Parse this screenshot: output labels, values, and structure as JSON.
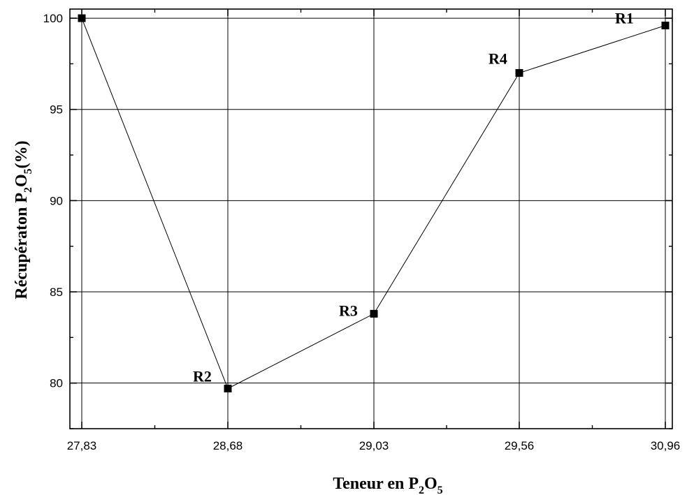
{
  "chart_data": {
    "type": "line",
    "x_categories": [
      "27,83",
      "28,68",
      "29,03",
      "29,56",
      "30,96"
    ],
    "values": [
      100.0,
      79.7,
      83.8,
      97.0,
      99.6
    ],
    "point_labels": [
      "",
      "R2",
      "R3",
      "R4",
      "R1"
    ],
    "xlabel": {
      "main": "Teneur en P",
      "sub1": "2",
      "mid": "O",
      "sub2": "5"
    },
    "ylabel": {
      "main": "Récupératon P",
      "sub1": "2",
      "mid": "O",
      "sub2": "5",
      "tail": "(%)"
    },
    "ylim": [
      77.5,
      100.5
    ],
    "y_ticks": [
      80,
      85,
      90,
      95,
      100
    ],
    "grid": true,
    "legend": "none",
    "colors": {
      "line": "#000000",
      "marker": "#000000",
      "grid": "#000000"
    }
  }
}
